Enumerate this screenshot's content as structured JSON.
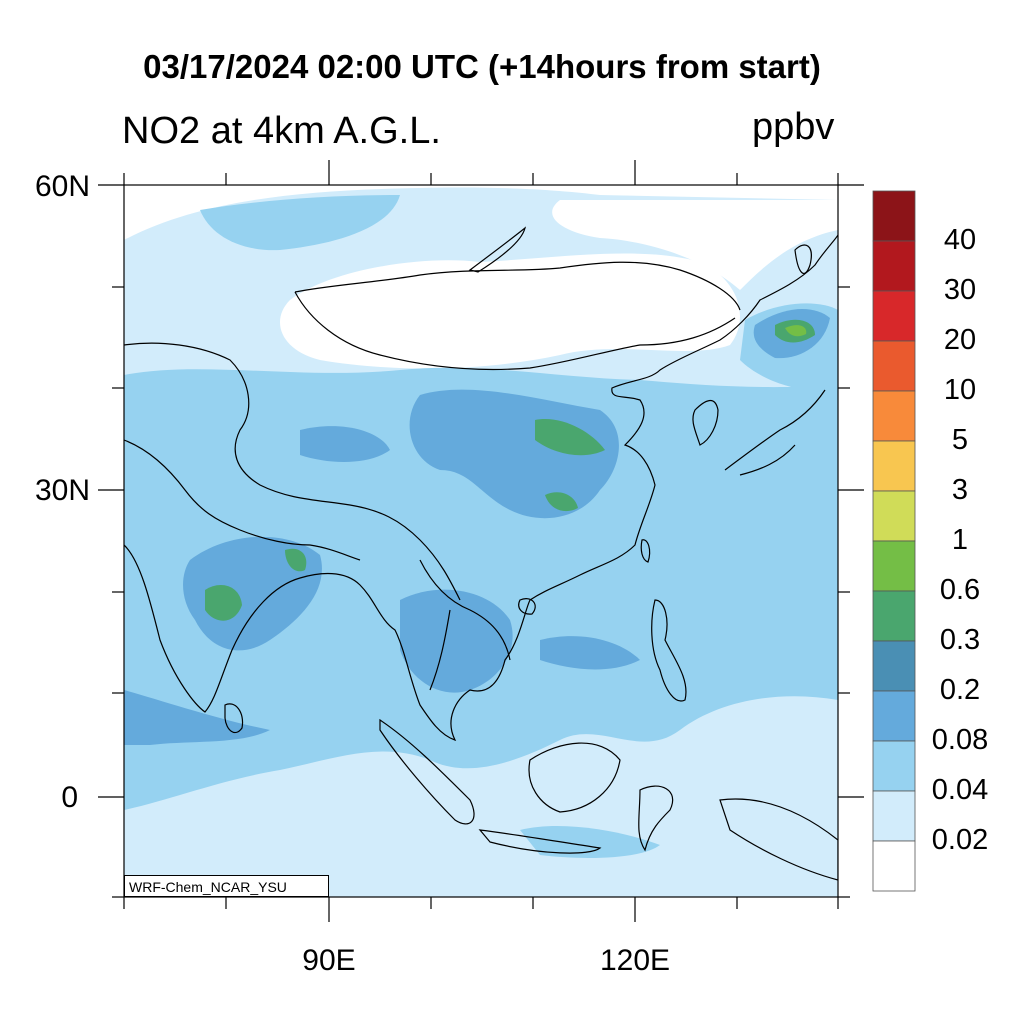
{
  "header": {
    "main_title": "03/17/2024 02:00 UTC (+14hours from start)",
    "left_title": "NO2 at 4km A.G.L.",
    "units": "ppbv"
  },
  "axes": {
    "y_labels": [
      "60N",
      "30N",
      "0"
    ],
    "x_labels": [
      "90E",
      "120E"
    ],
    "lat_range": [
      -10,
      60
    ],
    "lon_range": [
      70,
      140
    ]
  },
  "colorbar": {
    "levels": [
      "0.02",
      "0.04",
      "0.08",
      "0.2",
      "0.3",
      "0.6",
      "1",
      "3",
      "5",
      "10",
      "20",
      "30",
      "40"
    ],
    "colors": [
      "#ffffff",
      "#d2ecfb",
      "#96d2f0",
      "#64aadc",
      "#4a8fb4",
      "#4aa66e",
      "#74be46",
      "#d0dc58",
      "#f8c650",
      "#f88a3a",
      "#ea5a2e",
      "#d8282a",
      "#b2181e",
      "#8c1418"
    ]
  },
  "credit": "WRF-Chem_NCAR_YSU",
  "map_colors": {
    "background": "#d2ecfb",
    "coast": "#000000"
  }
}
